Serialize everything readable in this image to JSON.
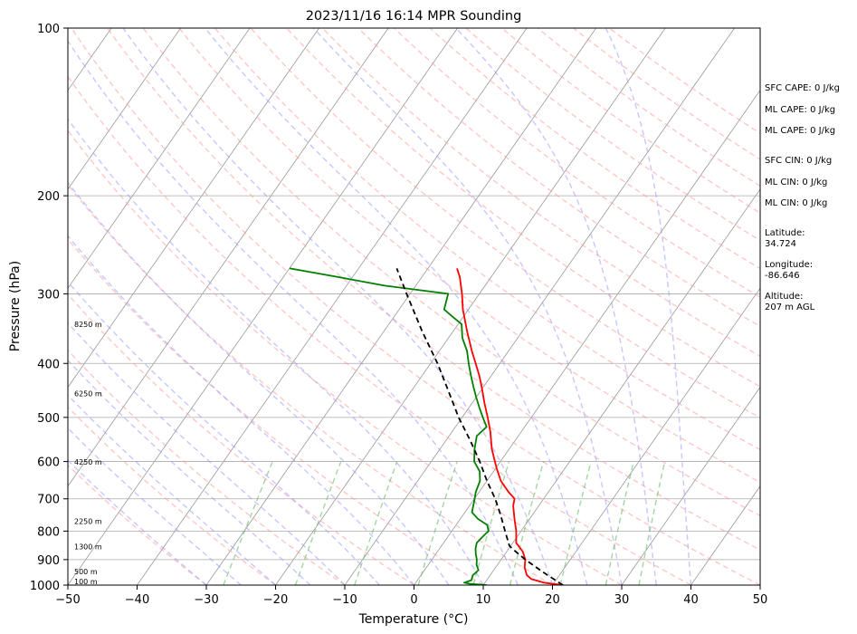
{
  "chart_data": {
    "type": "skewt",
    "title": "2023/11/16 16:14 MPR Sounding",
    "xlabel": "Temperature (°C)",
    "ylabel": "Pressure (hPa)",
    "xlim": [
      -50,
      50
    ],
    "ylim": [
      1000,
      100
    ],
    "y_scale": "log",
    "x_ticks": [
      -50,
      -40,
      -30,
      -20,
      -10,
      0,
      10,
      20,
      30,
      40,
      50
    ],
    "y_ticks": [
      1000,
      900,
      800,
      700,
      600,
      500,
      400,
      300,
      200,
      100
    ],
    "grid": true,
    "colors": {
      "temperature": "#ff0000",
      "dewpoint": "#008000",
      "parcel": "#000000",
      "dry_adiabats": "#ff9999",
      "moist_adiabats": "#9999ff",
      "mixing_ratio": "#66bb66",
      "isotherms": "#999999"
    },
    "series": [
      {
        "key": "temperature",
        "points": [
          [
            1000,
            21.5
          ],
          [
            990,
            18.5
          ],
          [
            975,
            16.3
          ],
          [
            960,
            15.3
          ],
          [
            930,
            14.2
          ],
          [
            900,
            13.5
          ],
          [
            870,
            12.3
          ],
          [
            840,
            10.5
          ],
          [
            800,
            9.3
          ],
          [
            760,
            7.8
          ],
          [
            720,
            6.3
          ],
          [
            700,
            5.8
          ],
          [
            680,
            4.2
          ],
          [
            650,
            2.0
          ],
          [
            620,
            0.3
          ],
          [
            600,
            -0.8
          ],
          [
            570,
            -2.5
          ],
          [
            530,
            -4.5
          ],
          [
            500,
            -6.3
          ],
          [
            470,
            -8.3
          ],
          [
            440,
            -10.3
          ],
          [
            420,
            -11.8
          ],
          [
            400,
            -13.5
          ],
          [
            380,
            -15.3
          ],
          [
            350,
            -18.0
          ],
          [
            320,
            -20.8
          ],
          [
            300,
            -22.5
          ],
          [
            280,
            -24.5
          ],
          [
            270,
            -25.8
          ]
        ]
      },
      {
        "key": "dewpoint",
        "points": [
          [
            1000,
            10.5
          ],
          [
            995,
            8.0
          ],
          [
            990,
            7.0
          ],
          [
            980,
            7.8
          ],
          [
            960,
            7.5
          ],
          [
            940,
            7.8
          ],
          [
            920,
            7.0
          ],
          [
            900,
            6.5
          ],
          [
            880,
            5.8
          ],
          [
            860,
            5.2
          ],
          [
            840,
            4.8
          ],
          [
            820,
            5.0
          ],
          [
            800,
            5.3
          ],
          [
            780,
            4.5
          ],
          [
            760,
            2.5
          ],
          [
            740,
            1.0
          ],
          [
            710,
            0.3
          ],
          [
            680,
            -0.5
          ],
          [
            650,
            -1.0
          ],
          [
            625,
            -2.0
          ],
          [
            600,
            -3.8
          ],
          [
            570,
            -5.0
          ],
          [
            540,
            -6.0
          ],
          [
            520,
            -5.5
          ],
          [
            500,
            -7.0
          ],
          [
            480,
            -8.5
          ],
          [
            460,
            -10.0
          ],
          [
            440,
            -11.5
          ],
          [
            420,
            -13.0
          ],
          [
            400,
            -14.5
          ],
          [
            380,
            -16.0
          ],
          [
            360,
            -18.0
          ],
          [
            340,
            -19.5
          ],
          [
            330,
            -21.5
          ],
          [
            320,
            -23.5
          ],
          [
            300,
            -24.5
          ],
          [
            290,
            -34.5
          ],
          [
            280,
            -42.0
          ],
          [
            270,
            -50.0
          ]
        ]
      },
      {
        "key": "parcel",
        "points": [
          [
            1000,
            21.5
          ],
          [
            950,
            17.5
          ],
          [
            900,
            13.5
          ],
          [
            860,
            10.5
          ],
          [
            850,
            9.8
          ],
          [
            800,
            7.7
          ],
          [
            750,
            5.5
          ],
          [
            700,
            3.0
          ],
          [
            650,
            0.0
          ],
          [
            600,
            -3.0
          ],
          [
            550,
            -6.5
          ],
          [
            500,
            -10.5
          ],
          [
            450,
            -14.5
          ],
          [
            400,
            -19.0
          ],
          [
            350,
            -24.5
          ],
          [
            300,
            -30.5
          ],
          [
            270,
            -34.5
          ]
        ]
      }
    ],
    "height_labels": [
      {
        "pressure": 1000,
        "label": "100 m"
      },
      {
        "pressure": 960,
        "label": "500 m"
      },
      {
        "pressure": 865,
        "label": "1300 m"
      },
      {
        "pressure": 780,
        "label": "2250 m"
      },
      {
        "pressure": 610,
        "label": "4250 m"
      },
      {
        "pressure": 460,
        "label": "6250 m"
      },
      {
        "pressure": 345,
        "label": "8250 m"
      }
    ]
  },
  "side_panel": {
    "sfc_cape": "SFC CAPE: 0 J/kg",
    "ml_cape_1": "ML CAPE: 0 J/kg",
    "ml_cape_2": "ML CAPE: 0 J/kg",
    "sfc_cin": "SFC CIN: 0 J/kg",
    "ml_cin_1": "ML CIN: 0 J/kg",
    "ml_cin_2": "ML CIN: 0 J/kg",
    "latitude_label": "Latitude:",
    "latitude_value": "34.724",
    "longitude_label": "Longitude:",
    "longitude_value": "-86.646",
    "altitude_label": "Altitude:",
    "altitude_value": "207 m AGL"
  }
}
